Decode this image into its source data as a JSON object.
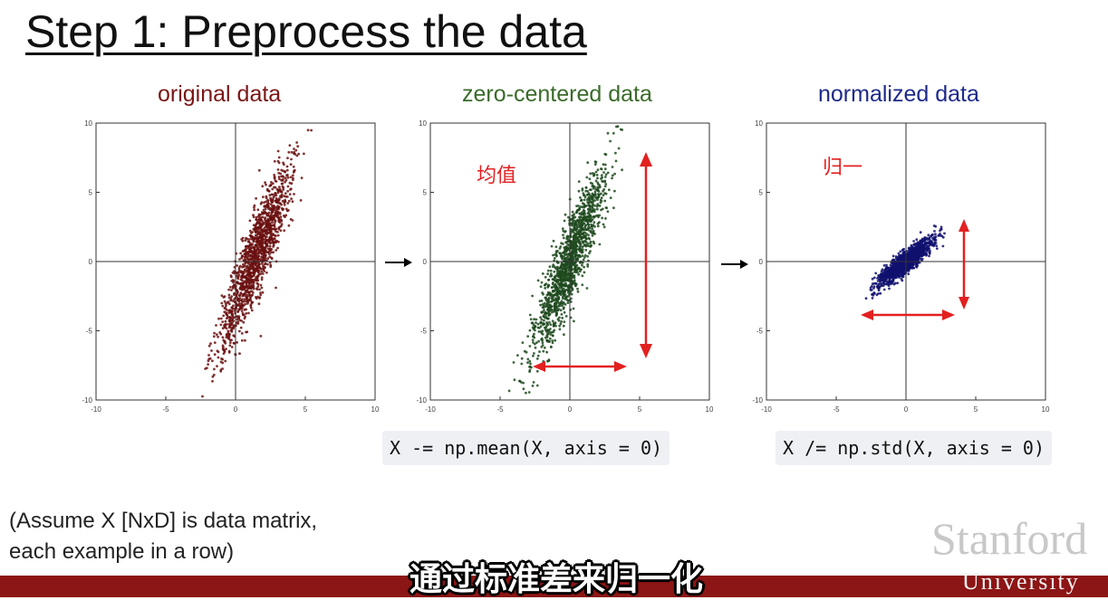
{
  "slide": {
    "title": "Step 1: Preprocess the data",
    "note_line1": "(Assume X [NxD] is data matrix,",
    "note_line2": "each example in a row)",
    "code1": "X -= np.mean(X, axis = 0)",
    "code2": "X /= np.std(X, axis = 0)",
    "logo_line1": "Stanford",
    "logo_line2": "University",
    "subtitle": "通过标准差来归一化",
    "anno1": "均值",
    "anno2": "归一"
  },
  "colors": {
    "original": "#6b1010",
    "zero_centered": "#1e4a1e",
    "normalized": "#101070",
    "arrow_red": "#e32020",
    "band": "#8c1515"
  },
  "chart_data": [
    {
      "type": "scatter",
      "title": "original data",
      "xlim": [
        -10,
        10
      ],
      "ylim": [
        -10,
        10
      ],
      "xticks": [
        "-10",
        "-5",
        "0",
        "5",
        "10"
      ],
      "yticks": [
        "10",
        "5",
        "0",
        "-5",
        "-10"
      ],
      "grid": false,
      "distribution": {
        "mean": [
          1.5,
          0.5
        ],
        "std_major": 3.5,
        "std_minor": 0.55,
        "angle_deg": 70,
        "n": 1400
      }
    },
    {
      "type": "scatter",
      "title": "zero-centered data",
      "xlim": [
        -10,
        10
      ],
      "ylim": [
        -10,
        10
      ],
      "xticks": [
        "-10",
        "-5",
        "0",
        "5",
        "10"
      ],
      "yticks": [
        "10",
        "5",
        "0",
        "-5",
        "-10"
      ],
      "grid": false,
      "distribution": {
        "mean": [
          0,
          0
        ],
        "std_major": 3.5,
        "std_minor": 0.55,
        "angle_deg": 70,
        "n": 1400
      }
    },
    {
      "type": "scatter",
      "title": "normalized data",
      "xlim": [
        -10,
        10
      ],
      "ylim": [
        -10,
        10
      ],
      "xticks": [
        "-10",
        "-5",
        "0",
        "5",
        "10"
      ],
      "yticks": [
        "10",
        "5",
        "0",
        "-5",
        "-10"
      ],
      "grid": false,
      "distribution": {
        "mean": [
          0,
          0
        ],
        "std_major": 1.2,
        "std_minor": 0.3,
        "angle_deg": 40,
        "n": 1400
      }
    }
  ]
}
